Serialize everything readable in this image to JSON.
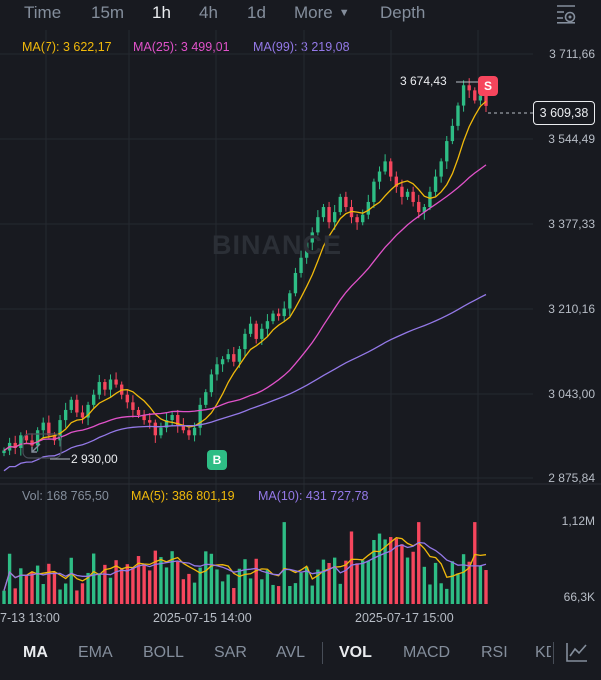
{
  "toolbar": {
    "tabs": [
      {
        "label": "Time",
        "active": false
      },
      {
        "label": "15m",
        "active": false
      },
      {
        "label": "1h",
        "active": true
      },
      {
        "label": "4h",
        "active": false
      },
      {
        "label": "1d",
        "active": false
      },
      {
        "label": "More",
        "active": false
      },
      {
        "label": "Depth",
        "active": false
      }
    ],
    "settings_icon": "chart-settings-icon"
  },
  "ma_legend": {
    "ma7": "MA(7): 3 622,17",
    "ma25": "MA(25): 3 499,01",
    "ma99": "MA(99): 3 219,08"
  },
  "vol_legend": {
    "vol": "Vol: 168 765,50",
    "ma5": "MA(5): 386 801,19",
    "ma10": "MA(10): 431 727,78"
  },
  "price_axis": [
    "3 711,66",
    "3 544,49",
    "3 377,33",
    "3 210,16",
    "3 043,00",
    "2 875,84"
  ],
  "current_price": "3 609,38",
  "high_label": "3 674,43",
  "low_label": "2 930,00",
  "markers": {
    "sell": "S",
    "buy": "B"
  },
  "volume_axis": [
    "1,12M",
    "66,3K"
  ],
  "date_axis": [
    "7-13 13:00",
    "2025-07-15 14:00",
    "2025-07-17 15:00"
  ],
  "watermark": "BINANCE",
  "bottom_tabs": [
    {
      "label": "MA",
      "active": true
    },
    {
      "label": "EMA",
      "active": false
    },
    {
      "label": "BOLL",
      "active": false
    },
    {
      "label": "SAR",
      "active": false
    },
    {
      "label": "AVL",
      "active": false
    },
    {
      "label": "VOL",
      "active": true
    },
    {
      "label": "MACD",
      "active": false
    },
    {
      "label": "RSI",
      "active": false
    },
    {
      "label": "KD",
      "active": false
    }
  ],
  "colors": {
    "up": "#2ebd85",
    "down": "#f6465d",
    "ma7": "#f0b90b",
    "ma25": "#e052c9",
    "ma99": "#9479e8",
    "background": "#181a20"
  },
  "chart_data": {
    "type": "candlestick",
    "interval": "1h",
    "price_range": [
      2875.84,
      3711.66
    ],
    "close_series": [
      2930,
      2945,
      2935,
      2960,
      2950,
      2940,
      2970,
      2985,
      2960,
      2950,
      2990,
      3010,
      3030,
      3005,
      2995,
      3020,
      3040,
      3065,
      3050,
      3070,
      3060,
      3040,
      3025,
      3010,
      3000,
      2990,
      2985,
      2960,
      2975,
      2990,
      3000,
      2980,
      2970,
      2960,
      2975,
      3020,
      3045,
      3080,
      3100,
      3110,
      3120,
      3105,
      3130,
      3160,
      3180,
      3150,
      3170,
      3185,
      3200,
      3195,
      3210,
      3240,
      3280,
      3310,
      3340,
      3360,
      3390,
      3410,
      3380,
      3400,
      3430,
      3410,
      3390,
      3380,
      3395,
      3420,
      3460,
      3480,
      3500,
      3470,
      3450,
      3430,
      3440,
      3420,
      3400,
      3410,
      3440,
      3470,
      3500,
      3540,
      3570,
      3610,
      3650,
      3640,
      3620,
      3630,
      3609.38
    ],
    "volume_range_label": [
      "66,3K",
      "1,12M"
    ]
  }
}
